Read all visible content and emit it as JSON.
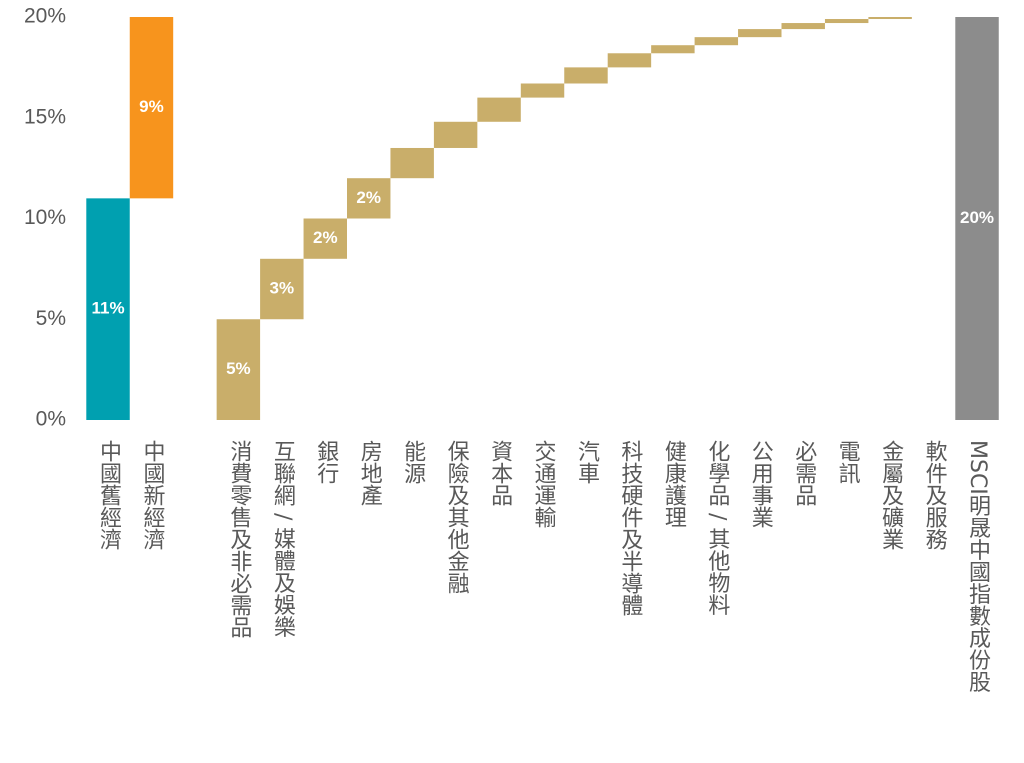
{
  "chart_data": {
    "type": "waterfall",
    "categories": [
      "中國舊經濟",
      "中國新經濟",
      null,
      "消費零售及非必需品",
      "互聯網 / 媒體及娛樂",
      "銀行",
      "房地產",
      "能源",
      "保險及其他金融",
      "資本品",
      "交通運輸",
      "汽車",
      "科技硬件及半導體",
      "健康護理",
      "化學品 / 其他物料",
      "公用事業",
      "必需品",
      "電訊",
      "金屬及礦業",
      "軟件及服務",
      "MSCI明晟中國指數成份股"
    ],
    "values": [
      11,
      9,
      null,
      5,
      3,
      2,
      2,
      1.5,
      1.3,
      1.2,
      0.7,
      0.8,
      0.7,
      0.4,
      0.4,
      0.4,
      0.3,
      0.2,
      0.1,
      0,
      20
    ],
    "value_labels": [
      "11%",
      "9%",
      null,
      "5%",
      "3%",
      "2%",
      "2%",
      null,
      null,
      null,
      null,
      null,
      null,
      null,
      null,
      null,
      null,
      null,
      null,
      null,
      "20%"
    ],
    "colors": [
      "#00a0b0",
      "#f7941d",
      null,
      "#c9ae6a",
      "#c9ae6a",
      "#c9ae6a",
      "#c9ae6a",
      "#c9ae6a",
      "#c9ae6a",
      "#c9ae6a",
      "#c9ae6a",
      "#c9ae6a",
      "#c9ae6a",
      "#c9ae6a",
      "#c9ae6a",
      "#c9ae6a",
      "#c9ae6a",
      "#c9ae6a",
      "#c9ae6a",
      "#c9ae6a",
      "#8c8c8c"
    ],
    "totals": [
      20
    ],
    "ylim": [
      0,
      20
    ],
    "yticks": [
      {
        "value": 0,
        "label": "0%"
      },
      {
        "value": 5,
        "label": "5%"
      },
      {
        "value": 10,
        "label": "10%"
      },
      {
        "value": 15,
        "label": "15%"
      },
      {
        "value": 20,
        "label": "20%"
      }
    ],
    "grid": false
  }
}
